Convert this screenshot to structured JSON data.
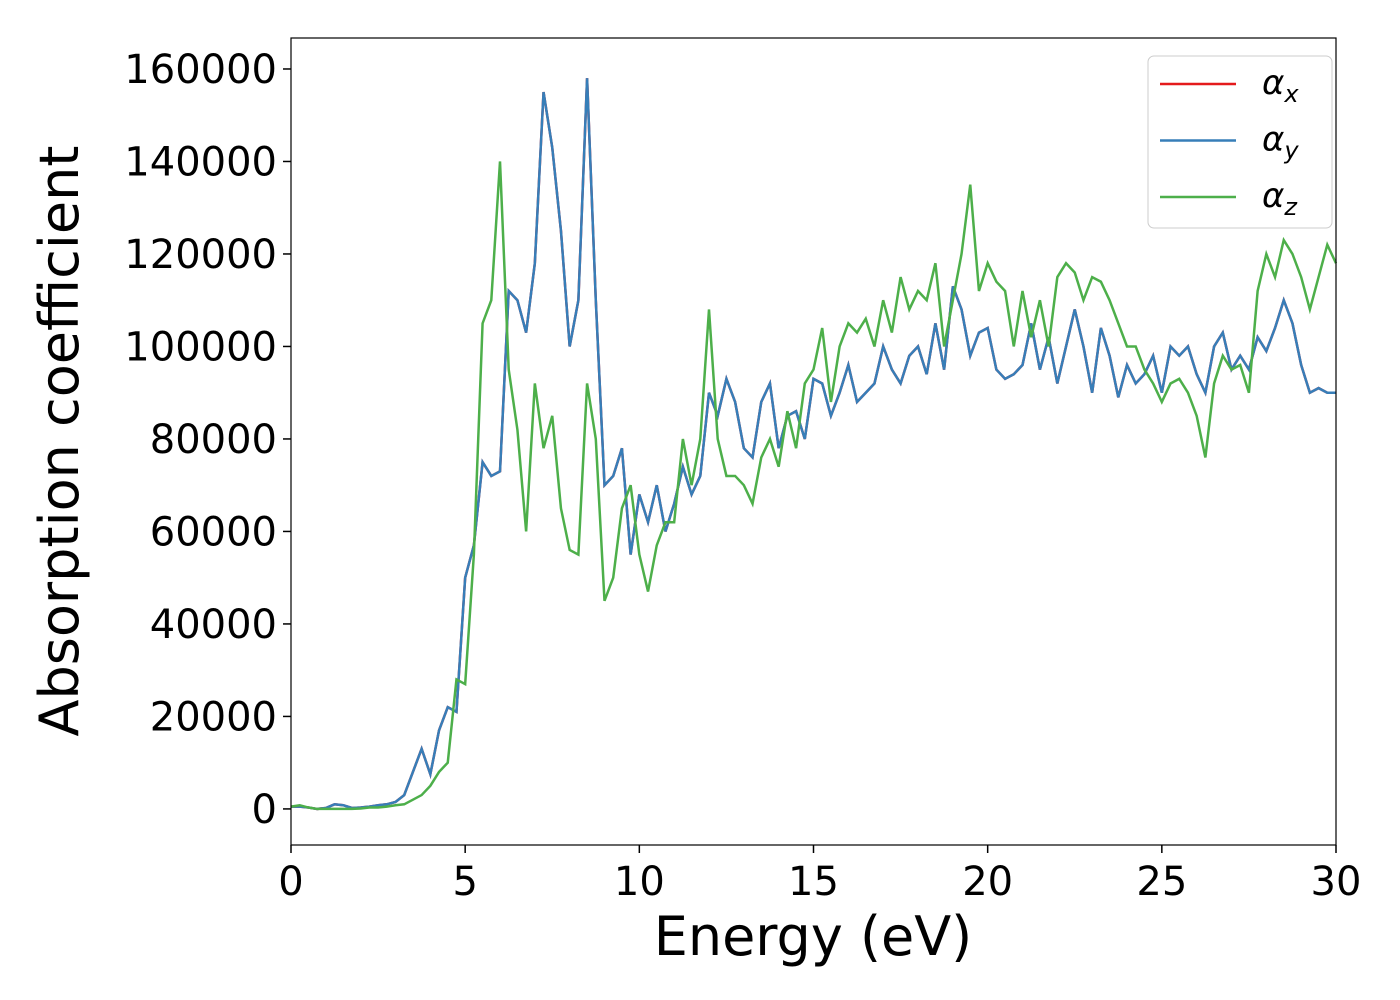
{
  "chart_data": {
    "type": "line",
    "x_label": "Energy (eV)",
    "y_label": "Absorption coefficient",
    "x": [
      0,
      0.25,
      0.5,
      0.75,
      1,
      1.25,
      1.5,
      1.75,
      2,
      2.25,
      2.5,
      2.75,
      3,
      3.25,
      3.5,
      3.75,
      4,
      4.25,
      4.5,
      4.75,
      5,
      5.25,
      5.5,
      5.75,
      6,
      6.25,
      6.5,
      6.75,
      7,
      7.25,
      7.5,
      7.75,
      8,
      8.25,
      8.5,
      8.75,
      9,
      9.25,
      9.5,
      9.75,
      10,
      10.25,
      10.5,
      10.75,
      11,
      11.25,
      11.5,
      11.75,
      12,
      12.25,
      12.5,
      12.75,
      13,
      13.25,
      13.5,
      13.75,
      14,
      14.25,
      14.5,
      14.75,
      15,
      15.25,
      15.5,
      15.75,
      16,
      16.25,
      16.5,
      16.75,
      17,
      17.25,
      17.5,
      17.75,
      18,
      18.25,
      18.5,
      18.75,
      19,
      19.25,
      19.5,
      19.75,
      20,
      20.25,
      20.5,
      20.75,
      21,
      21.25,
      21.5,
      21.75,
      22,
      22.25,
      22.5,
      22.75,
      23,
      23.25,
      23.5,
      23.75,
      24,
      24.25,
      24.5,
      24.75,
      25,
      25.25,
      25.5,
      25.75,
      26,
      26.25,
      26.5,
      26.75,
      27,
      27.25,
      27.5,
      27.75,
      28,
      28.25,
      28.5,
      28.75,
      29,
      29.25,
      29.5,
      29.75,
      30
    ],
    "series": [
      {
        "name": "αx",
        "color": "#e41a1c",
        "values": [
          500,
          500,
          300,
          0,
          200,
          1000,
          800,
          200,
          300,
          500,
          800,
          1000,
          1500,
          3000,
          8000,
          13000,
          7500,
          17000,
          22000,
          21000,
          50000,
          57000,
          75000,
          72000,
          73000,
          112000,
          110000,
          103000,
          118000,
          155000,
          143000,
          125000,
          100000,
          110000,
          158000,
          110000,
          70000,
          72000,
          78000,
          55000,
          68000,
          62000,
          70000,
          60000,
          66000,
          74000,
          68000,
          72000,
          90000,
          85000,
          93000,
          88000,
          78000,
          76000,
          88000,
          92000,
          78000,
          85000,
          86000,
          80000,
          93000,
          92000,
          85000,
          90000,
          96000,
          88000,
          90000,
          92000,
          100000,
          95000,
          92000,
          98000,
          100000,
          94000,
          105000,
          95000,
          113000,
          108000,
          98000,
          103000,
          104000,
          95000,
          93000,
          94000,
          96000,
          105000,
          95000,
          102000,
          92000,
          100000,
          108000,
          100000,
          90000,
          104000,
          98000,
          89000,
          96000,
          92000,
          94000,
          98000,
          90000,
          100000,
          98000,
          100000,
          94000,
          90000,
          100000,
          103000,
          95000,
          98000,
          95000,
          102000,
          99000,
          104000,
          110000,
          105000,
          96000,
          90000,
          91000,
          90000,
          90000
        ]
      },
      {
        "name": "αy",
        "color": "#377eb8",
        "values": [
          500,
          500,
          300,
          0,
          200,
          1000,
          800,
          200,
          300,
          500,
          800,
          1000,
          1500,
          3000,
          8000,
          13000,
          7500,
          17000,
          22000,
          21000,
          50000,
          57000,
          75000,
          72000,
          73000,
          112000,
          110000,
          103000,
          118000,
          155000,
          143000,
          125000,
          100000,
          110000,
          158000,
          110000,
          70000,
          72000,
          78000,
          55000,
          68000,
          62000,
          70000,
          60000,
          66000,
          74000,
          68000,
          72000,
          90000,
          85000,
          93000,
          88000,
          78000,
          76000,
          88000,
          92000,
          78000,
          85000,
          86000,
          80000,
          93000,
          92000,
          85000,
          90000,
          96000,
          88000,
          90000,
          92000,
          100000,
          95000,
          92000,
          98000,
          100000,
          94000,
          105000,
          95000,
          113000,
          108000,
          98000,
          103000,
          104000,
          95000,
          93000,
          94000,
          96000,
          105000,
          95000,
          102000,
          92000,
          100000,
          108000,
          100000,
          90000,
          104000,
          98000,
          89000,
          96000,
          92000,
          94000,
          98000,
          90000,
          100000,
          98000,
          100000,
          94000,
          90000,
          100000,
          103000,
          95000,
          98000,
          95000,
          102000,
          99000,
          104000,
          110000,
          105000,
          96000,
          90000,
          91000,
          90000,
          90000
        ]
      },
      {
        "name": "αz",
        "color": "#4daf4a",
        "values": [
          500,
          800,
          300,
          0,
          0,
          0,
          0,
          0,
          100,
          300,
          300,
          500,
          800,
          1000,
          2000,
          3000,
          5000,
          8000,
          10000,
          28000,
          27000,
          55000,
          105000,
          110000,
          140000,
          95000,
          82000,
          60000,
          92000,
          78000,
          85000,
          65000,
          56000,
          55000,
          92000,
          80000,
          45000,
          50000,
          65000,
          70000,
          55000,
          47000,
          57000,
          62000,
          62000,
          80000,
          70000,
          80000,
          108000,
          80000,
          72000,
          72000,
          70000,
          66000,
          76000,
          80000,
          74000,
          86000,
          78000,
          92000,
          95000,
          104000,
          88000,
          100000,
          105000,
          103000,
          106000,
          100000,
          110000,
          103000,
          115000,
          108000,
          112000,
          110000,
          118000,
          100000,
          110000,
          120000,
          135000,
          112000,
          118000,
          114000,
          112000,
          100000,
          112000,
          102000,
          110000,
          100000,
          115000,
          118000,
          116000,
          110000,
          115000,
          114000,
          110000,
          105000,
          100000,
          100000,
          95000,
          92000,
          88000,
          92000,
          93000,
          90000,
          85000,
          76000,
          92000,
          98000,
          95000,
          96000,
          90000,
          112000,
          120000,
          115000,
          123000,
          120000,
          115000,
          108000,
          115000,
          122000,
          118000
        ]
      }
    ],
    "xlim": [
      0,
      30
    ],
    "xticks": [
      0,
      5,
      10,
      15,
      20,
      25,
      30
    ],
    "ylim": [
      -7800,
      166700
    ],
    "yticks": [
      0,
      20000,
      40000,
      60000,
      80000,
      100000,
      120000,
      140000,
      160000
    ],
    "legend": "upper right"
  }
}
